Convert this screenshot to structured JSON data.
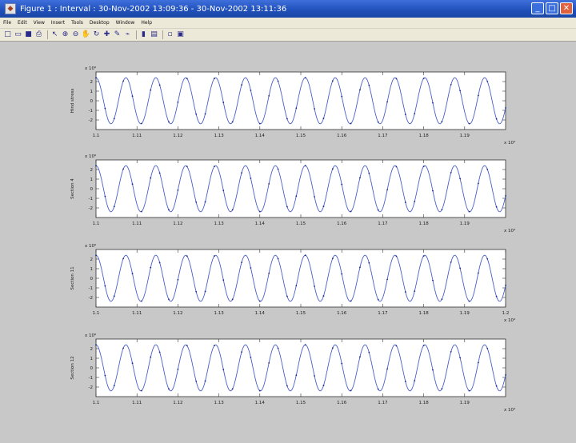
{
  "window": {
    "title": "Figure 1 : Interval : 30-Nov-2002 13:09:36 - 30-Nov-2002 13:11:36",
    "minimize": "_",
    "maximize": "□",
    "close": "✕"
  },
  "menu": [
    "File",
    "Edit",
    "View",
    "Insert",
    "Tools",
    "Desktop",
    "Window",
    "Help"
  ],
  "toolbar": {
    "buttons": [
      {
        "name": "new-figure-icon",
        "glyph": "□"
      },
      {
        "name": "open-file-icon",
        "glyph": "▭"
      },
      {
        "name": "save-icon",
        "glyph": "■"
      },
      {
        "name": "print-icon",
        "glyph": "⎙"
      },
      {
        "sep": true
      },
      {
        "name": "edit-plot-arrow-icon",
        "glyph": "↖"
      },
      {
        "name": "zoom-in-icon",
        "glyph": "⊕"
      },
      {
        "name": "zoom-out-icon",
        "glyph": "⊖"
      },
      {
        "name": "pan-hand-icon",
        "glyph": "✋"
      },
      {
        "name": "rotate-3d-icon",
        "glyph": "↻"
      },
      {
        "name": "data-cursor-icon",
        "glyph": "✚"
      },
      {
        "name": "brush-icon",
        "glyph": "✎"
      },
      {
        "name": "link-icon",
        "glyph": "⌁"
      },
      {
        "sep": true
      },
      {
        "name": "colorbar-icon",
        "glyph": "▮"
      },
      {
        "name": "legend-icon",
        "glyph": "▤"
      },
      {
        "sep": true
      },
      {
        "name": "hide-plot-tools-icon",
        "glyph": "▫"
      },
      {
        "name": "show-plot-tools-icon",
        "glyph": "▣"
      }
    ]
  },
  "chart_data": [
    {
      "type": "line",
      "ylabel": "Hind stress",
      "y_exponent": "x 10⁶",
      "x_exponent": "x 10⁴",
      "xlim": [
        1.1,
        1.2
      ],
      "x_ticks": [
        "1.1",
        "1.11",
        "1.12",
        "1.13",
        "1.14",
        "1.15",
        "1.16",
        "1.17",
        "1.18",
        "1.19"
      ],
      "ylim": [
        -3,
        3
      ],
      "y_ticks": [
        "2",
        "1",
        "0",
        "-1",
        "-2"
      ],
      "series": [
        {
          "amplitude": 2.4,
          "cycles": 13.7,
          "phase": 1.57,
          "color": "#4a5ec8"
        }
      ]
    },
    {
      "type": "line",
      "ylabel": "Section 4",
      "y_exponent": "x 10⁶",
      "x_exponent": "x 10⁴",
      "xlim": [
        1.1,
        1.2
      ],
      "x_ticks": [
        "1.1",
        "1.11",
        "1.12",
        "1.13",
        "1.14",
        "1.15",
        "1.16",
        "1.17",
        "1.18",
        "1.19"
      ],
      "ylim": [
        -3,
        3
      ],
      "y_ticks": [
        "2",
        "1",
        "0",
        "-1",
        "-2"
      ],
      "series": [
        {
          "amplitude": 2.4,
          "cycles": 13.7,
          "phase": 1.57,
          "color": "#4a5ec8"
        }
      ]
    },
    {
      "type": "line",
      "ylabel": "Section 11",
      "y_exponent": "x 10⁶",
      "x_exponent": "x 10⁴",
      "xlim": [
        1.1,
        1.2
      ],
      "x_ticks": [
        "1.1",
        "1.11",
        "1.12",
        "1.13",
        "1.14",
        "1.15",
        "1.16",
        "1.17",
        "1.18",
        "1.19",
        "1.2"
      ],
      "ylim": [
        -3,
        3
      ],
      "y_ticks": [
        "2",
        "1",
        "0",
        "-1",
        "-2"
      ],
      "series": [
        {
          "amplitude": 2.4,
          "cycles": 13.7,
          "phase": 1.57,
          "color": "#4a5ec8"
        }
      ]
    },
    {
      "type": "line",
      "ylabel": "Section 12",
      "y_exponent": "x 10⁶",
      "x_exponent": "x 10⁴",
      "xlim": [
        1.1,
        1.2
      ],
      "x_ticks": [
        "1.1",
        "1.11",
        "1.12",
        "1.13",
        "1.14",
        "1.15",
        "1.16",
        "1.17",
        "1.18",
        "1.19"
      ],
      "ylim": [
        -3,
        3
      ],
      "y_ticks": [
        "2",
        "1",
        "0",
        "-1",
        "-2"
      ],
      "series": [
        {
          "amplitude": 2.4,
          "cycles": 13.7,
          "phase": 1.57,
          "color": "#4a5ec8"
        }
      ]
    }
  ]
}
